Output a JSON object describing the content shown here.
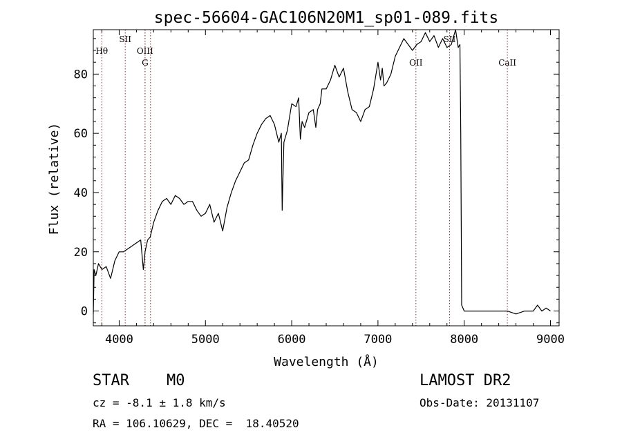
{
  "chart_data": {
    "type": "line",
    "title": "spec-56604-GAC106N20M1_sp01-089.fits",
    "xlabel": "Wavelength (Å)",
    "ylabel": "Flux (relative)",
    "xlim": [
      3700,
      9100
    ],
    "ylim": [
      -5,
      95
    ],
    "xticks": [
      4000,
      5000,
      6000,
      7000,
      8000,
      9000
    ],
    "yticks": [
      0,
      20,
      40,
      60,
      80
    ],
    "grid": false,
    "legend": "none",
    "series": [
      {
        "color": "#000000",
        "x": [
          3700,
          3710,
          3730,
          3760,
          3800,
          3850,
          3900,
          3950,
          4000,
          4050,
          4100,
          4150,
          4200,
          4250,
          4280,
          4300,
          4330,
          4360,
          4400,
          4450,
          4500,
          4550,
          4600,
          4650,
          4700,
          4750,
          4800,
          4850,
          4900,
          4950,
          5000,
          5050,
          5100,
          5150,
          5200,
          5250,
          5300,
          5350,
          5400,
          5450,
          5500,
          5550,
          5600,
          5650,
          5700,
          5750,
          5800,
          5850,
          5880,
          5890,
          5895,
          5910,
          5950,
          6000,
          6050,
          6080,
          6100,
          6120,
          6150,
          6200,
          6250,
          6280,
          6300,
          6330,
          6350,
          6400,
          6450,
          6500,
          6550,
          6600,
          6650,
          6700,
          6750,
          6800,
          6850,
          6900,
          6950,
          7000,
          7030,
          7050,
          7070,
          7100,
          7150,
          7200,
          7250,
          7300,
          7350,
          7400,
          7450,
          7500,
          7550,
          7600,
          7650,
          7700,
          7750,
          7800,
          7850,
          7900,
          7930,
          7950,
          7960,
          7970,
          8000,
          8050,
          8100,
          8200,
          8300,
          8400,
          8500,
          8600,
          8700,
          8800,
          8850,
          8900,
          8950,
          9000
        ],
        "y": [
          -1,
          14,
          12,
          16,
          14,
          15,
          11,
          17,
          20,
          20,
          21,
          22,
          23,
          24,
          14,
          20,
          24,
          25,
          30,
          34,
          37,
          38,
          36,
          39,
          38,
          36,
          37,
          37,
          34,
          32,
          33,
          36,
          30,
          33,
          27,
          35,
          40,
          44,
          47,
          50,
          51,
          56,
          60,
          63,
          65,
          66,
          63,
          57,
          60,
          34,
          41,
          57,
          61,
          70,
          69,
          72,
          58,
          64,
          62,
          67,
          68,
          62,
          68,
          70,
          75,
          75,
          78,
          83,
          79,
          82,
          74,
          68,
          67,
          64,
          68,
          69,
          75,
          84,
          78,
          82,
          76,
          77,
          80,
          86,
          89,
          92,
          90,
          88,
          90,
          91,
          94,
          91,
          93,
          89,
          92,
          89,
          90,
          95,
          89,
          90,
          60,
          2,
          0,
          0,
          0,
          0,
          0,
          0,
          0,
          -1,
          0,
          0,
          2,
          0,
          1,
          0
        ]
      }
    ],
    "lines": [
      {
        "label": "Hθ",
        "x": 3798,
        "row": 0
      },
      {
        "label": "SII",
        "x": 4070,
        "row": -1
      },
      {
        "label": "OIII",
        "x": 4300,
        "row": 0
      },
      {
        "label": "G",
        "x": 4300,
        "row": 1
      },
      {
        "label": "",
        "x": 4363,
        "row": 0
      },
      {
        "label": "OII",
        "x": 7440,
        "row": 1
      },
      {
        "label": "SII",
        "x": 7830,
        "row": -1
      },
      {
        "label": "CaII",
        "x": 8500,
        "row": 1
      }
    ]
  },
  "footer": {
    "object_class": "STAR",
    "subclass": "M0",
    "survey": "LAMOST DR2",
    "redshift": "cz = -8.1 ± 1.8 km/s",
    "obs_date": "Obs-Date: 20131107",
    "coords": "RA = 106.10629, DEC =  18.40520"
  }
}
